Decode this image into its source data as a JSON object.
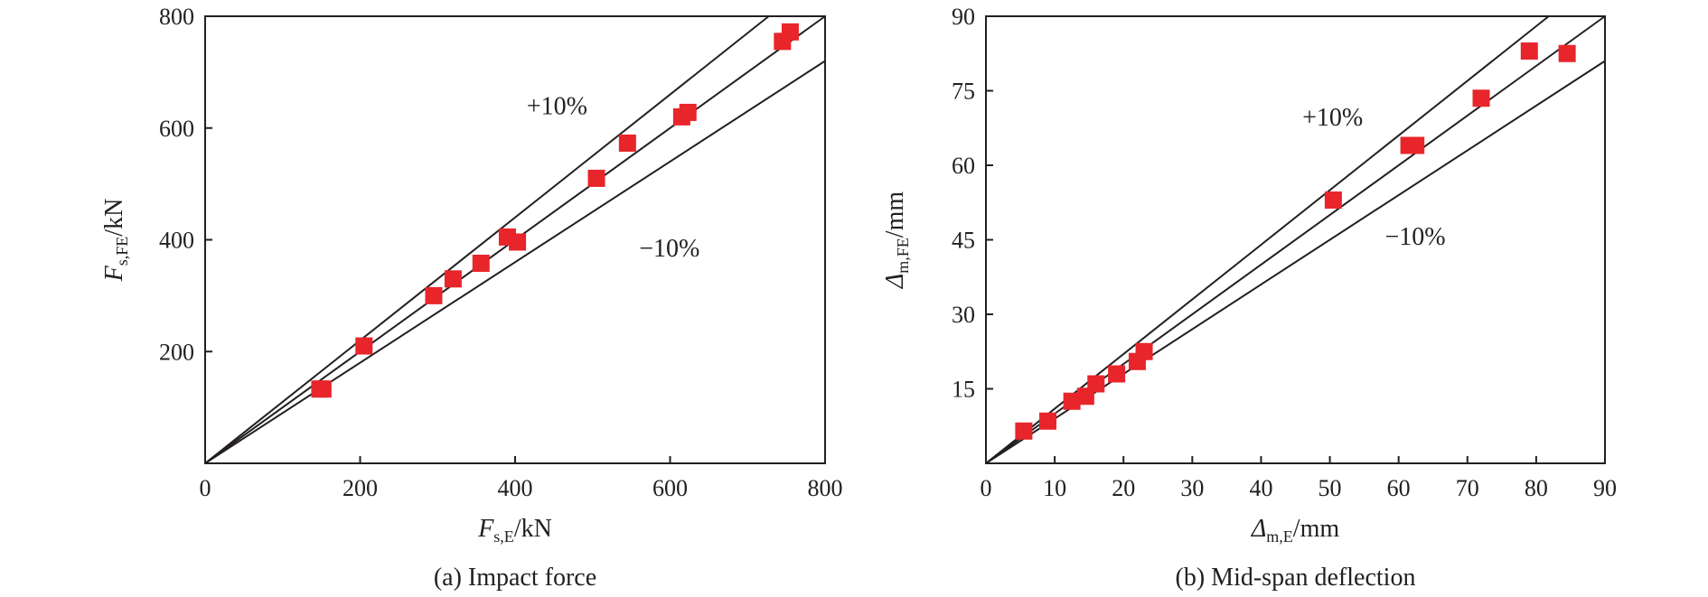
{
  "colors": {
    "marker": "#e8252b",
    "axis": "#231f20",
    "background": "#ffffff"
  },
  "chart_data": [
    {
      "type": "scatter",
      "caption": "(a) Impact force",
      "xlabel": {
        "main": "F",
        "sub": "s,E",
        "unit": "/kN"
      },
      "ylabel": {
        "main": "F",
        "sub": "s,FE",
        "unit": "/kN"
      },
      "xlim": [
        0,
        800
      ],
      "ylim": [
        0,
        800
      ],
      "xticks": [
        0,
        200,
        400,
        600,
        800
      ],
      "xtick_labels": [
        "0",
        "200",
        "400",
        "600",
        "800"
      ],
      "yticks": [
        200,
        400,
        600,
        800
      ],
      "ytick_labels": [
        "200",
        "400",
        "600",
        "800"
      ],
      "grid": false,
      "reference_lines": [
        {
          "slope": 1.1,
          "label": "+10%"
        },
        {
          "slope": 1.0,
          "label": ""
        },
        {
          "slope": 0.9,
          "label": "−10%"
        }
      ],
      "band_labels": [
        {
          "text": "+10%",
          "x": 415,
          "y": 625
        },
        {
          "text": "−10%",
          "x": 560,
          "y": 370
        }
      ],
      "points": [
        [
          148,
          133
        ],
        [
          152,
          133
        ],
        [
          205,
          210
        ],
        [
          295,
          300
        ],
        [
          320,
          330
        ],
        [
          356,
          358
        ],
        [
          390,
          405
        ],
        [
          403,
          396
        ],
        [
          505,
          510
        ],
        [
          545,
          573
        ],
        [
          615,
          620
        ],
        [
          623,
          628
        ],
        [
          745,
          755
        ],
        [
          755,
          772
        ]
      ]
    },
    {
      "type": "scatter",
      "caption": "(b) Mid-span deflection",
      "xlabel": {
        "main": "Δ",
        "sub": "m,E",
        "unit": "/mm"
      },
      "ylabel": {
        "main": "Δ",
        "sub": "m,FE",
        "unit": "/mm"
      },
      "xlim": [
        0,
        90
      ],
      "ylim": [
        0,
        90
      ],
      "xticks": [
        0,
        10,
        20,
        30,
        40,
        50,
        60,
        70,
        80,
        90
      ],
      "xtick_labels": [
        "0",
        "10",
        "20",
        "30",
        "40",
        "50",
        "60",
        "70",
        "80",
        "90"
      ],
      "yticks": [
        15,
        30,
        45,
        60,
        75,
        90
      ],
      "ytick_labels": [
        "15",
        "30",
        "45",
        "60",
        "75",
        "90"
      ],
      "grid": false,
      "reference_lines": [
        {
          "slope": 1.1,
          "label": "+10%"
        },
        {
          "slope": 1.0,
          "label": ""
        },
        {
          "slope": 0.9,
          "label": "−10%"
        }
      ],
      "band_labels": [
        {
          "text": "+10%",
          "x": 46,
          "y": 68
        },
        {
          "text": "−10%",
          "x": 58,
          "y": 44
        }
      ],
      "points": [
        [
          5.5,
          6.5
        ],
        [
          9,
          8.5
        ],
        [
          12.5,
          12.5
        ],
        [
          14.5,
          13.5
        ],
        [
          16,
          16
        ],
        [
          19,
          18
        ],
        [
          22,
          20.5
        ],
        [
          23,
          22.5
        ],
        [
          50.5,
          53
        ],
        [
          61.5,
          64
        ],
        [
          62.5,
          64
        ],
        [
          72,
          73.5
        ],
        [
          79,
          83
        ],
        [
          84.5,
          82.5
        ]
      ]
    }
  ]
}
